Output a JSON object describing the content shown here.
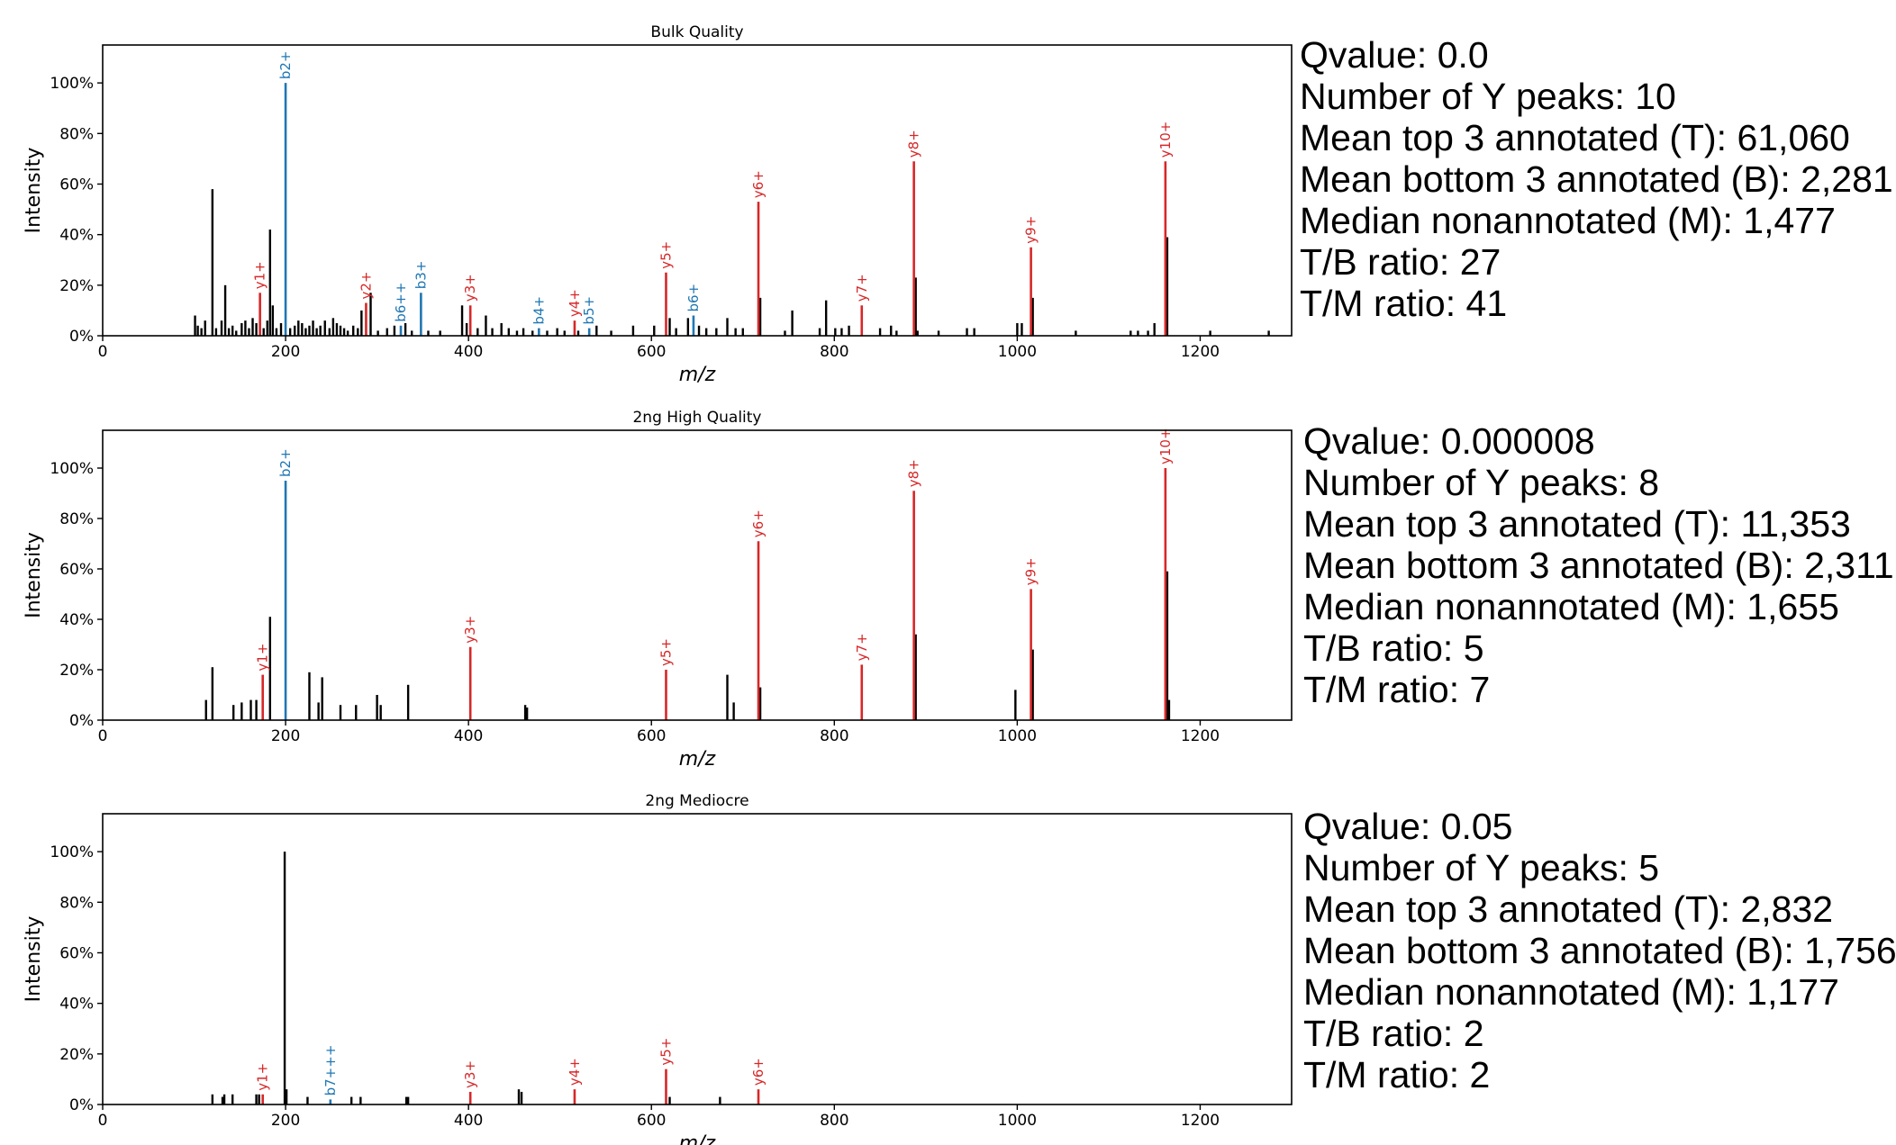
{
  "colors": {
    "y_ion": "#d62728",
    "b_ion": "#1f77b4",
    "unannotated": "#000000"
  },
  "panels": [
    {
      "stats": {
        "qvalue": "Qvalue: 0.0",
        "y_peaks": "Number of Y peaks: 10",
        "mean_top": "Mean top 3 annotated (T): 61,060",
        "mean_bottom": "Mean bottom 3 annotated (B): 2,281",
        "median_non": "Median nonannotated (M): 1,477",
        "tb_ratio": "T/B ratio: 27",
        "tm_ratio": "T/M ratio: 41"
      }
    },
    {
      "stats": {
        "qvalue": "Qvalue: 0.000008",
        "y_peaks": "Number of Y peaks: 8",
        "mean_top": "Mean top 3 annotated (T): 11,353",
        "mean_bottom": "Mean bottom 3 annotated (B): 2,311",
        "median_non": "Median nonannotated (M): 1,655",
        "tb_ratio": "T/B ratio: 5",
        "tm_ratio": "T/M ratio: 7"
      }
    },
    {
      "stats": {
        "qvalue": "Qvalue: 0.05",
        "y_peaks": "Number of Y peaks: 5",
        "mean_top": "Mean top 3 annotated (T): 2,832",
        "mean_bottom": "Mean bottom 3 annotated (B): 1,756",
        "median_non": "Median nonannotated (M): 1,177",
        "tb_ratio": "T/B ratio: 2",
        "tm_ratio": "T/M ratio: 2"
      }
    }
  ],
  "chart_data": [
    {
      "type": "bar",
      "title": "Bulk Quality",
      "xlabel": "m/z",
      "ylabel": "Intensity",
      "xlim": [
        0,
        1300
      ],
      "ylim": [
        0,
        115
      ],
      "xticks": [
        0,
        200,
        400,
        600,
        800,
        1000,
        1200
      ],
      "yticks": [
        0,
        20,
        40,
        60,
        80,
        100
      ],
      "ytick_labels": [
        "0%",
        "20%",
        "40%",
        "60%",
        "80%",
        "100%"
      ],
      "annotated": [
        {
          "mz": 172,
          "intensity": 17,
          "label": "y1+",
          "ion": "y"
        },
        {
          "mz": 200,
          "intensity": 100,
          "label": "b2+",
          "ion": "b"
        },
        {
          "mz": 288,
          "intensity": 13,
          "label": "y2+",
          "ion": "y"
        },
        {
          "mz": 326,
          "intensity": 4,
          "label": "b6++",
          "ion": "b"
        },
        {
          "mz": 348,
          "intensity": 17,
          "label": "b3+",
          "ion": "b"
        },
        {
          "mz": 402,
          "intensity": 12,
          "label": "y3+",
          "ion": "y"
        },
        {
          "mz": 477,
          "intensity": 3,
          "label": "b4+",
          "ion": "b"
        },
        {
          "mz": 516,
          "intensity": 6,
          "label": "y4+",
          "ion": "y"
        },
        {
          "mz": 532,
          "intensity": 3,
          "label": "b5+",
          "ion": "b"
        },
        {
          "mz": 616,
          "intensity": 25,
          "label": "y5+",
          "ion": "y"
        },
        {
          "mz": 646,
          "intensity": 8,
          "label": "b6+",
          "ion": "b"
        },
        {
          "mz": 717,
          "intensity": 53,
          "label": "y6+",
          "ion": "y"
        },
        {
          "mz": 830,
          "intensity": 12,
          "label": "y7+",
          "ion": "y"
        },
        {
          "mz": 887,
          "intensity": 69,
          "label": "y8+",
          "ion": "y"
        },
        {
          "mz": 1015,
          "intensity": 35,
          "label": "y9+",
          "ion": "y"
        },
        {
          "mz": 1162,
          "intensity": 69,
          "label": "y10+",
          "ion": "y"
        }
      ],
      "unannotated": [
        [
          101,
          8
        ],
        [
          104,
          4
        ],
        [
          108,
          3
        ],
        [
          112,
          6
        ],
        [
          120,
          58
        ],
        [
          124,
          3
        ],
        [
          130,
          6
        ],
        [
          134,
          20
        ],
        [
          138,
          3
        ],
        [
          142,
          4
        ],
        [
          146,
          2
        ],
        [
          152,
          5
        ],
        [
          156,
          6
        ],
        [
          160,
          3
        ],
        [
          164,
          7
        ],
        [
          168,
          5
        ],
        [
          176,
          3
        ],
        [
          180,
          6
        ],
        [
          183,
          42
        ],
        [
          186,
          12
        ],
        [
          190,
          3
        ],
        [
          195,
          5
        ],
        [
          205,
          3
        ],
        [
          210,
          4
        ],
        [
          214,
          6
        ],
        [
          218,
          5
        ],
        [
          222,
          3
        ],
        [
          226,
          4
        ],
        [
          230,
          6
        ],
        [
          234,
          3
        ],
        [
          238,
          4
        ],
        [
          243,
          6
        ],
        [
          248,
          3
        ],
        [
          252,
          7
        ],
        [
          256,
          5
        ],
        [
          260,
          4
        ],
        [
          264,
          3
        ],
        [
          268,
          2
        ],
        [
          274,
          4
        ],
        [
          279,
          3
        ],
        [
          283,
          10
        ],
        [
          293,
          17
        ],
        [
          301,
          2
        ],
        [
          311,
          3
        ],
        [
          319,
          4
        ],
        [
          331,
          5
        ],
        [
          338,
          2
        ],
        [
          356,
          2
        ],
        [
          369,
          2
        ],
        [
          393,
          12
        ],
        [
          398,
          5
        ],
        [
          410,
          3
        ],
        [
          419,
          8
        ],
        [
          426,
          3
        ],
        [
          436,
          5
        ],
        [
          444,
          3
        ],
        [
          453,
          2
        ],
        [
          460,
          3
        ],
        [
          470,
          2
        ],
        [
          486,
          2
        ],
        [
          497,
          3
        ],
        [
          505,
          2
        ],
        [
          520,
          2
        ],
        [
          540,
          4
        ],
        [
          556,
          2
        ],
        [
          580,
          4
        ],
        [
          603,
          4
        ],
        [
          620,
          7
        ],
        [
          627,
          3
        ],
        [
          640,
          7
        ],
        [
          652,
          4
        ],
        [
          660,
          3
        ],
        [
          671,
          3
        ],
        [
          683,
          7
        ],
        [
          692,
          3
        ],
        [
          700,
          3
        ],
        [
          719,
          15
        ],
        [
          746,
          2
        ],
        [
          754,
          10
        ],
        [
          784,
          3
        ],
        [
          791,
          14
        ],
        [
          801,
          3
        ],
        [
          808,
          3
        ],
        [
          816,
          4
        ],
        [
          850,
          3
        ],
        [
          862,
          4
        ],
        [
          868,
          2
        ],
        [
          889,
          23
        ],
        [
          891,
          2
        ],
        [
          914,
          2
        ],
        [
          945,
          3
        ],
        [
          953,
          3
        ],
        [
          1000,
          5
        ],
        [
          1005,
          5
        ],
        [
          1017,
          15
        ],
        [
          1064,
          2
        ],
        [
          1124,
          2
        ],
        [
          1132,
          2
        ],
        [
          1143,
          2
        ],
        [
          1150,
          5
        ],
        [
          1164,
          39
        ],
        [
          1211,
          2
        ],
        [
          1275,
          2
        ]
      ]
    },
    {
      "type": "bar",
      "title": "2ng High Quality",
      "xlabel": "m/z",
      "ylabel": "Intensity",
      "xlim": [
        0,
        1300
      ],
      "ylim": [
        0,
        115
      ],
      "xticks": [
        0,
        200,
        400,
        600,
        800,
        1000,
        1200
      ],
      "yticks": [
        0,
        20,
        40,
        60,
        80,
        100
      ],
      "ytick_labels": [
        "0%",
        "20%",
        "40%",
        "60%",
        "80%",
        "100%"
      ],
      "annotated": [
        {
          "mz": 175,
          "intensity": 18,
          "label": "y1+",
          "ion": "y"
        },
        {
          "mz": 200,
          "intensity": 95,
          "label": "b2+",
          "ion": "b"
        },
        {
          "mz": 402,
          "intensity": 29,
          "label": "y3+",
          "ion": "y"
        },
        {
          "mz": 616,
          "intensity": 20,
          "label": "y5+",
          "ion": "y"
        },
        {
          "mz": 717,
          "intensity": 71,
          "label": "y6+",
          "ion": "y"
        },
        {
          "mz": 830,
          "intensity": 22,
          "label": "y7+",
          "ion": "y"
        },
        {
          "mz": 887,
          "intensity": 91,
          "label": "y8+",
          "ion": "y"
        },
        {
          "mz": 1015,
          "intensity": 52,
          "label": "y9+",
          "ion": "y"
        },
        {
          "mz": 1162,
          "intensity": 100,
          "label": "y10+",
          "ion": "y"
        }
      ],
      "unannotated": [
        [
          113,
          8
        ],
        [
          120,
          21
        ],
        [
          143,
          6
        ],
        [
          152,
          7
        ],
        [
          162,
          8
        ],
        [
          168,
          8
        ],
        [
          183,
          41
        ],
        [
          226,
          19
        ],
        [
          236,
          7
        ],
        [
          240,
          17
        ],
        [
          260,
          6
        ],
        [
          277,
          6
        ],
        [
          300,
          10
        ],
        [
          304,
          6
        ],
        [
          334,
          14
        ],
        [
          462,
          6
        ],
        [
          464,
          5
        ],
        [
          683,
          18
        ],
        [
          690,
          7
        ],
        [
          719,
          13
        ],
        [
          889,
          34
        ],
        [
          998,
          12
        ],
        [
          1017,
          28
        ],
        [
          1164,
          59
        ],
        [
          1166,
          8
        ]
      ]
    },
    {
      "type": "bar",
      "title": "2ng Mediocre",
      "xlabel": "m/z",
      "ylabel": "Intensity",
      "xlim": [
        0,
        1300
      ],
      "ylim": [
        0,
        115
      ],
      "xticks": [
        0,
        200,
        400,
        600,
        800,
        1000,
        1200
      ],
      "yticks": [
        0,
        20,
        40,
        60,
        80,
        100
      ],
      "ytick_labels": [
        "0%",
        "20%",
        "40%",
        "60%",
        "80%",
        "100%"
      ],
      "annotated": [
        {
          "mz": 175,
          "intensity": 4,
          "label": "y1+",
          "ion": "y"
        },
        {
          "mz": 249,
          "intensity": 2,
          "label": "b7+++",
          "ion": "b"
        },
        {
          "mz": 402,
          "intensity": 5,
          "label": "y3+",
          "ion": "y"
        },
        {
          "mz": 516,
          "intensity": 6,
          "label": "y4+",
          "ion": "y"
        },
        {
          "mz": 616,
          "intensity": 14,
          "label": "y5+",
          "ion": "y"
        },
        {
          "mz": 717,
          "intensity": 6,
          "label": "y6+",
          "ion": "y"
        }
      ],
      "unannotated": [
        [
          120,
          4
        ],
        [
          131,
          3
        ],
        [
          133,
          4
        ],
        [
          142,
          4
        ],
        [
          168,
          4
        ],
        [
          171,
          4
        ],
        [
          199,
          100
        ],
        [
          201,
          6
        ],
        [
          224,
          3
        ],
        [
          272,
          3
        ],
        [
          282,
          3
        ],
        [
          332,
          3
        ],
        [
          334,
          3
        ],
        [
          455,
          6
        ],
        [
          458,
          5
        ],
        [
          620,
          3
        ],
        [
          675,
          3
        ]
      ]
    }
  ]
}
